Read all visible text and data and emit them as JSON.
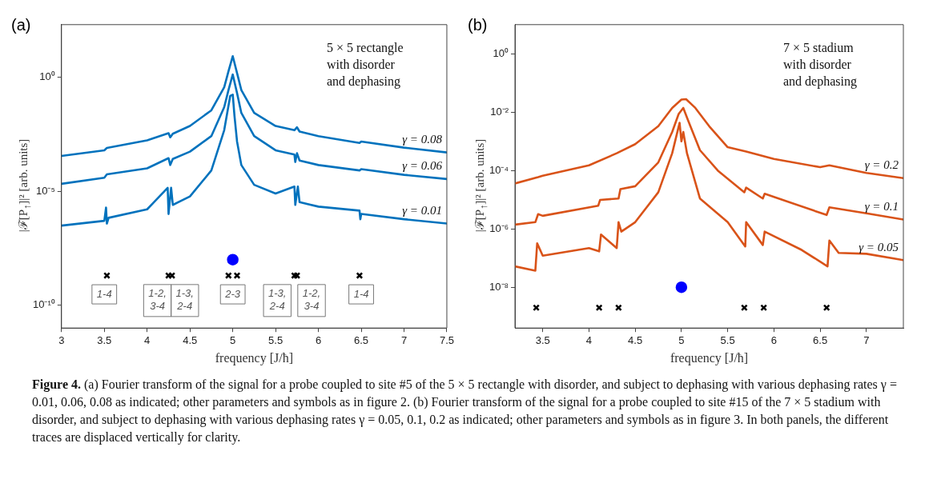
{
  "chart_data": [
    {
      "type": "line",
      "title": "(a)",
      "xlabel": "frequency [J/ħ]",
      "ylabel": "|ℱ[P$_{↑}$]|² [arb. units]",
      "log": "y",
      "xlim": [
        3,
        7.5
      ],
      "xticks": [
        3,
        3.5,
        4,
        4.5,
        5,
        5.5,
        6,
        6.5,
        7,
        7.5
      ],
      "ylim": [
        1e-11,
        200
      ],
      "yticks": [
        {
          "value": 1,
          "label": "10⁰"
        },
        {
          "value": 1e-05,
          "label": "10⁻⁵"
        },
        {
          "value": 1e-10,
          "label": "10⁻¹⁰"
        }
      ],
      "annotations": [
        "5 × 5 rectangle\nwith disorder\nand dephasing",
        {
          "text": "1-4",
          "x": 3.5,
          "y": 3e-10
        },
        {
          "text": "1-2,\n3-4",
          "x": 4.12,
          "y": 1.6e-10
        },
        {
          "text": "1-3,\n2-4",
          "x": 4.44,
          "y": 1.6e-10
        },
        {
          "text": "2-3",
          "x": 5.0,
          "y": 3e-10
        },
        {
          "text": "1-3,\n2-4",
          "x": 5.52,
          "y": 1.6e-10
        },
        {
          "text": "1-2,\n3-4",
          "x": 5.92,
          "y": 1.6e-10
        },
        {
          "text": "1-4",
          "x": 6.5,
          "y": 3e-10
        }
      ],
      "series": [
        {
          "name": "γ = 0.08",
          "color": "#0072bd",
          "x": [
            3,
            3.5,
            3.53,
            4,
            4.25,
            4.27,
            4.3,
            4.5,
            4.75,
            4.9,
            4.95,
            5,
            5.05,
            5.1,
            5.25,
            5.5,
            5.72,
            5.75,
            5.78,
            6,
            6.48,
            6.5,
            7,
            7.5
          ],
          "values": [
            0.00035,
            0.00062,
            0.00078,
            0.0017,
            0.0035,
            0.0023,
            0.0033,
            0.0072,
            0.035,
            0.36,
            1.8,
            8.3,
            1.5,
            0.27,
            0.027,
            0.0072,
            0.0047,
            0.0063,
            0.0041,
            0.0026,
            0.0013,
            0.0015,
            0.00081,
            0.0005
          ]
        },
        {
          "name": "γ = 0.06",
          "color": "#0072bd",
          "x": [
            3,
            3.5,
            3.53,
            4,
            4.25,
            4.27,
            4.3,
            4.5,
            4.75,
            4.9,
            4.95,
            5,
            5.05,
            5.1,
            5.25,
            5.5,
            5.72,
            5.73,
            5.75,
            5.78,
            6,
            6.48,
            6.5,
            7,
            7.5
          ],
          "values": [
            2.1e-05,
            3.9e-05,
            5.5e-05,
            0.0001,
            0.00028,
            0.00014,
            0.00026,
            0.00054,
            0.0026,
            0.048,
            0.27,
            1.3,
            0.2,
            0.027,
            0.0026,
            0.00062,
            0.0004,
            0.00019,
            0.00046,
            0.00022,
            0.00014,
            8.1e-05,
            9.3e-05,
            5.2e-05,
            3.4e-05
          ]
        },
        {
          "name": "γ = 0.01",
          "color": "#0072bd",
          "x": [
            3,
            3.5,
            3.52,
            3.53,
            3.55,
            4,
            4.24,
            4.25,
            4.28,
            4.3,
            4.5,
            4.75,
            4.9,
            4.97,
            5,
            5.02,
            5.05,
            5.1,
            5.25,
            5.5,
            5.72,
            5.73,
            5.76,
            5.78,
            6,
            6.48,
            6.49,
            6.5,
            7,
            7.5
          ],
          "values": [
            3.1e-07,
            5e-07,
            1.9e-06,
            3.8e-07,
            6.8e-07,
            1.6e-06,
            1.4e-05,
            1e-06,
            1.4e-05,
            2.5e-06,
            5.9e-06,
            8.1e-05,
            0.0047,
            0.15,
            0.17,
            0.02,
            0.0015,
            0.00014,
            1.9e-05,
            7.9e-06,
            1.6e-05,
            2.5e-06,
            1.6e-05,
            3.3e-06,
            2.1e-06,
            1.4e-06,
            5.9e-07,
            1e-06,
            5.9e-07,
            3.8e-07
          ]
        },
        {
          "type": "scatter",
          "marker": "cross",
          "color": "#000000",
          "x": [
            3.53,
            4.25,
            4.29,
            4.95,
            5.05,
            5.72,
            5.75,
            6.48
          ],
          "values": [
            2e-09,
            2e-09,
            2e-09,
            2e-09,
            2e-09,
            2e-09,
            2e-09,
            2e-09
          ]
        },
        {
          "type": "scatter",
          "marker": "circle",
          "color": "#0000ff",
          "x": [
            5.0
          ],
          "values": [
            1e-08
          ]
        }
      ]
    },
    {
      "type": "line",
      "title": "(b)",
      "xlabel": "frequency [J/ħ]",
      "ylabel": "|ℱ[P$_{↑}$]|² [arb. units]",
      "log": "y",
      "xlim": [
        3.2,
        7.4
      ],
      "xticks": [
        3.5,
        4,
        4.5,
        5,
        5.5,
        6,
        6.5,
        7
      ],
      "ylim": [
        4e-10,
        10
      ],
      "yticks": [
        {
          "value": 1,
          "label": "10⁰"
        },
        {
          "value": 0.01,
          "label": "10⁻²"
        },
        {
          "value": 0.0001,
          "label": "10⁻⁴"
        },
        {
          "value": 1e-06,
          "label": "10⁻⁶"
        },
        {
          "value": 1e-08,
          "label": "10⁻⁸"
        }
      ],
      "annotations": [
        "7 × 5 stadium\nwith disorder\nand dephasing"
      ],
      "series": [
        {
          "name": "γ = 0.2",
          "color": "#d95319",
          "x": [
            3.2,
            3.45,
            3.5,
            4,
            4.3,
            4.5,
            4.75,
            4.9,
            5,
            5.05,
            5.15,
            5.3,
            5.5,
            5.7,
            6,
            6.5,
            6.6,
            7,
            7.4
          ],
          "values": [
            3.6e-05,
            5.9e-05,
            6.6e-05,
            0.00015,
            0.00039,
            0.0008,
            0.0033,
            0.014,
            0.027,
            0.028,
            0.014,
            0.0033,
            0.00063,
            0.00045,
            0.00025,
            0.00013,
            0.00015,
            8.3e-05,
            5.5e-05
          ]
        },
        {
          "name": "γ = 0.1",
          "color": "#d95319",
          "x": [
            3.2,
            3.42,
            3.45,
            3.5,
            4.1,
            4.12,
            4.32,
            4.34,
            4.5,
            4.75,
            4.9,
            4.97,
            5.02,
            5.07,
            5.2,
            5.4,
            5.68,
            5.7,
            5.88,
            5.9,
            6.57,
            6.6,
            7,
            7.4
          ],
          "values": [
            1.4e-06,
            1.7e-06,
            3.2e-06,
            2.8e-06,
            6.2e-06,
            9.8e-06,
            1.1e-05,
            2.3e-05,
            2.9e-05,
            0.00019,
            0.0021,
            0.0087,
            0.014,
            0.0054,
            0.0005,
            9.5e-05,
            1.8e-05,
            2.6e-05,
            1.1e-05,
            1.6e-05,
            3e-06,
            5.5e-06,
            3.4e-06,
            2.1e-06
          ]
        },
        {
          "name": "γ = 0.05",
          "color": "#d95319",
          "x": [
            3.2,
            3.42,
            3.44,
            3.5,
            4,
            4.11,
            4.13,
            4.3,
            4.32,
            4.35,
            4.5,
            4.75,
            4.9,
            4.98,
            5,
            5.02,
            5.06,
            5.2,
            5.5,
            5.69,
            5.7,
            5.88,
            5.9,
            6.3,
            6.58,
            6.6,
            6.7,
            7,
            7.4
          ],
          "values": [
            5.2e-08,
            3.7e-08,
            3.2e-07,
            1.2e-07,
            2.2e-07,
            1.7e-07,
            6.4e-07,
            2.2e-07,
            1.7e-06,
            8.1e-07,
            1.7e-06,
            1.8e-05,
            0.00039,
            0.0043,
            0.001,
            0.0021,
            0.00039,
            1.1e-05,
            1.7e-06,
            2.5e-07,
            1.7e-06,
            2.8e-07,
            8.1e-07,
            1.9e-07,
            5.2e-08,
            4e-07,
            1.5e-07,
            1.4e-07,
            8.5e-08
          ]
        },
        {
          "type": "scatter",
          "marker": "cross",
          "color": "#000000",
          "x": [
            3.43,
            4.11,
            4.32,
            5.68,
            5.89,
            6.57
          ],
          "values": [
            2e-09,
            2e-09,
            2e-09,
            2e-09,
            2e-09,
            2e-09
          ]
        },
        {
          "type": "scatter",
          "marker": "circle",
          "color": "#0000ff",
          "x": [
            5.0
          ],
          "values": [
            1e-08
          ]
        }
      ]
    },
    {
      "type": "other",
      "title": "Figure 4.",
      "annotations": [
        "(a) Fourier transform of the signal for a probe coupled to site #5 of the 5 × 5 rectangle with disorder, and subject to dephasing with various dephasing rates γ = 0.01, 0.06, 0.08 as indicated; other parameters and symbols as in figure 2. (b) Fourier transform of the signal for a probe coupled to site #15 of the 7 × 5 stadium with disorder, and subject to dephasing with various dephasing rates γ = 0.05, 0.1, 0.2 as indicated; other parameters and symbols as in figure 3. In both panels, the different traces are displaced vertically for clarity."
      ]
    }
  ]
}
